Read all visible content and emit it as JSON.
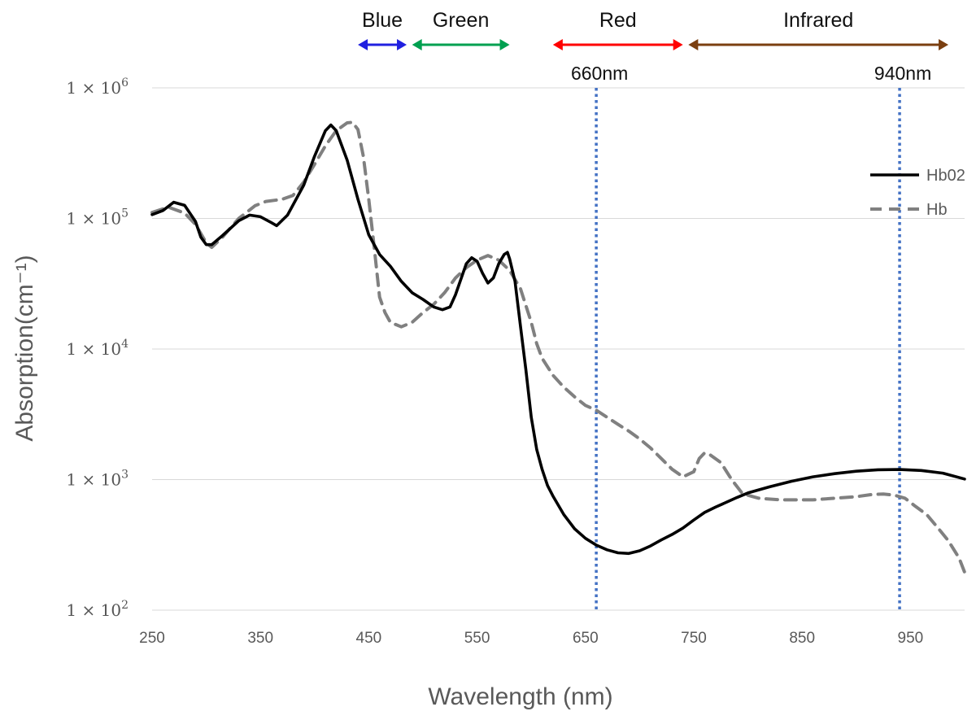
{
  "chart_data": {
    "type": "line",
    "title": "",
    "xlabel": "Wavelength (nm)",
    "ylabel": "Absorption(cm⁻¹)",
    "x_scale": "linear",
    "y_scale": "log",
    "xlim": [
      250,
      1000
    ],
    "ylim": [
      100,
      1000000
    ],
    "x_ticks": [
      250,
      350,
      450,
      550,
      650,
      750,
      850,
      950
    ],
    "y_ticks": [
      {
        "value": 100,
        "label": "1 × 10",
        "exp": "2"
      },
      {
        "value": 1000,
        "label": "1 × 10",
        "exp": "3"
      },
      {
        "value": 10000,
        "label": "1 × 10",
        "exp": "4"
      },
      {
        "value": 100000,
        "label": "1 × 10",
        "exp": "5"
      },
      {
        "value": 1000000,
        "label": "1 × 10",
        "exp": "6"
      }
    ],
    "grid": "horizontal",
    "series": [
      {
        "name": "Hb02",
        "color": "#000000",
        "style": "solid",
        "points": [
          [
            250,
            107000
          ],
          [
            260,
            115000
          ],
          [
            270,
            133000
          ],
          [
            280,
            126000
          ],
          [
            290,
            95000
          ],
          [
            295,
            72000
          ],
          [
            300,
            63000
          ],
          [
            305,
            63000
          ],
          [
            315,
            74000
          ],
          [
            330,
            96000
          ],
          [
            340,
            106000
          ],
          [
            350,
            103000
          ],
          [
            360,
            93000
          ],
          [
            365,
            88000
          ],
          [
            375,
            106000
          ],
          [
            390,
            180000
          ],
          [
            400,
            300000
          ],
          [
            410,
            470000
          ],
          [
            415,
            520000
          ],
          [
            420,
            470000
          ],
          [
            430,
            280000
          ],
          [
            440,
            140000
          ],
          [
            450,
            75000
          ],
          [
            460,
            53000
          ],
          [
            470,
            43000
          ],
          [
            480,
            33000
          ],
          [
            490,
            27000
          ],
          [
            500,
            24000
          ],
          [
            510,
            21000
          ],
          [
            518,
            20000
          ],
          [
            525,
            21000
          ],
          [
            530,
            26000
          ],
          [
            540,
            45000
          ],
          [
            545,
            50000
          ],
          [
            550,
            47000
          ],
          [
            555,
            38000
          ],
          [
            560,
            32000
          ],
          [
            565,
            35000
          ],
          [
            570,
            45000
          ],
          [
            575,
            53000
          ],
          [
            578,
            55000
          ],
          [
            580,
            49000
          ],
          [
            585,
            33000
          ],
          [
            590,
            15000
          ],
          [
            595,
            7000
          ],
          [
            600,
            3000
          ],
          [
            605,
            1700
          ],
          [
            610,
            1200
          ],
          [
            615,
            900
          ],
          [
            620,
            750
          ],
          [
            630,
            540
          ],
          [
            640,
            420
          ],
          [
            650,
            355
          ],
          [
            660,
            315
          ],
          [
            670,
            290
          ],
          [
            680,
            275
          ],
          [
            690,
            272
          ],
          [
            700,
            285
          ],
          [
            710,
            310
          ],
          [
            720,
            345
          ],
          [
            730,
            380
          ],
          [
            740,
            425
          ],
          [
            750,
            490
          ],
          [
            760,
            560
          ],
          [
            770,
            615
          ],
          [
            780,
            670
          ],
          [
            790,
            730
          ],
          [
            800,
            790
          ],
          [
            820,
            880
          ],
          [
            840,
            970
          ],
          [
            860,
            1050
          ],
          [
            880,
            1110
          ],
          [
            900,
            1160
          ],
          [
            920,
            1190
          ],
          [
            940,
            1195
          ],
          [
            960,
            1175
          ],
          [
            980,
            1120
          ],
          [
            1000,
            1010
          ]
        ]
      },
      {
        "name": "Hb",
        "color": "#808080",
        "style": "dashed",
        "points": [
          [
            250,
            111000
          ],
          [
            265,
            122000
          ],
          [
            280,
            110000
          ],
          [
            290,
            90000
          ],
          [
            300,
            65000
          ],
          [
            305,
            60000
          ],
          [
            315,
            72000
          ],
          [
            330,
            100000
          ],
          [
            345,
            125000
          ],
          [
            355,
            135000
          ],
          [
            370,
            140000
          ],
          [
            380,
            150000
          ],
          [
            390,
            190000
          ],
          [
            400,
            260000
          ],
          [
            410,
            360000
          ],
          [
            420,
            470000
          ],
          [
            430,
            540000
          ],
          [
            435,
            545000
          ],
          [
            440,
            480000
          ],
          [
            445,
            300000
          ],
          [
            450,
            140000
          ],
          [
            455,
            60000
          ],
          [
            460,
            25000
          ],
          [
            465,
            19000
          ],
          [
            470,
            16000
          ],
          [
            480,
            14800
          ],
          [
            490,
            16000
          ],
          [
            500,
            19000
          ],
          [
            510,
            22000
          ],
          [
            520,
            27000
          ],
          [
            530,
            35000
          ],
          [
            540,
            42000
          ],
          [
            550,
            48000
          ],
          [
            560,
            52000
          ],
          [
            570,
            48000
          ],
          [
            580,
            40000
          ],
          [
            590,
            29000
          ],
          [
            600,
            16000
          ],
          [
            605,
            11000
          ],
          [
            610,
            8500
          ],
          [
            620,
            6300
          ],
          [
            630,
            5100
          ],
          [
            640,
            4300
          ],
          [
            650,
            3700
          ],
          [
            660,
            3400
          ],
          [
            670,
            3000
          ],
          [
            680,
            2650
          ],
          [
            690,
            2350
          ],
          [
            700,
            2050
          ],
          [
            710,
            1750
          ],
          [
            720,
            1450
          ],
          [
            730,
            1200
          ],
          [
            740,
            1050
          ],
          [
            750,
            1150
          ],
          [
            755,
            1450
          ],
          [
            760,
            1600
          ],
          [
            765,
            1550
          ],
          [
            775,
            1350
          ],
          [
            785,
            1000
          ],
          [
            795,
            780
          ],
          [
            810,
            720
          ],
          [
            830,
            700
          ],
          [
            860,
            700
          ],
          [
            880,
            720
          ],
          [
            900,
            740
          ],
          [
            915,
            770
          ],
          [
            925,
            775
          ],
          [
            935,
            760
          ],
          [
            945,
            720
          ],
          [
            955,
            620
          ],
          [
            965,
            540
          ],
          [
            975,
            430
          ],
          [
            985,
            340
          ],
          [
            995,
            250
          ],
          [
            1000,
            195
          ]
        ]
      }
    ],
    "vertical_markers": [
      {
        "x": 660,
        "label": "660nm",
        "color": "#4472C4",
        "style": "dotted"
      },
      {
        "x": 940,
        "label": "940nm",
        "color": "#4472C4",
        "style": "dotted"
      }
    ],
    "bands": [
      {
        "label": "Blue",
        "from": 440,
        "to": 485,
        "color": "#2020E0"
      },
      {
        "label": "Green",
        "from": 490,
        "to": 580,
        "color": "#00A050"
      },
      {
        "label": "Red",
        "from": 620,
        "to": 740,
        "color": "#FF0000"
      },
      {
        "label": "Infrared",
        "from": 745,
        "to": 985,
        "color": "#7B3F10"
      }
    ],
    "legend": {
      "position": "right",
      "entries": [
        "Hb02",
        "Hb"
      ]
    }
  }
}
